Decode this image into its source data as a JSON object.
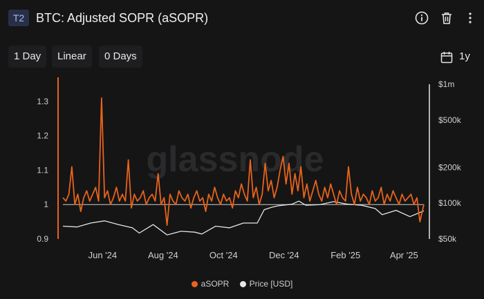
{
  "header": {
    "badge": "T2",
    "title": "BTC: Adjusted SOPR (aSOPR)"
  },
  "toolbar": {
    "resolution": "1 Day",
    "scale": "Linear",
    "moving_average": "0 Days",
    "range": "1y"
  },
  "watermark": "glassnode",
  "colors": {
    "asopr": "#e8641b",
    "price": "#e6e6e6",
    "background": "#151516",
    "axis_text": "#d0d0d0"
  },
  "icons": [
    "info-icon",
    "trash-icon",
    "more-vertical-icon",
    "calendar-icon"
  ],
  "chart_data": {
    "type": "line",
    "x_ticks": [
      "Jun '24",
      "Aug '24",
      "Oct '24",
      "Dec '24",
      "Feb '25",
      "Apr '25"
    ],
    "x_tick_dates": [
      "2024-06-01",
      "2024-08-01",
      "2024-10-01",
      "2024-12-01",
      "2025-02-01",
      "2025-04-01"
    ],
    "x_range": [
      "2024-04-22",
      "2025-04-21"
    ],
    "y_left": {
      "ticks": [
        "0.9",
        "1",
        "1.1",
        "1.2",
        "1.3"
      ],
      "tick_values": [
        0.9,
        1.0,
        1.1,
        1.2,
        1.3
      ],
      "range": [
        0.9,
        1.35
      ]
    },
    "y_right": {
      "scale": "log",
      "ticks": [
        "$50k",
        "$100k",
        "$200k",
        "$500k",
        "$1m"
      ],
      "tick_values": [
        50000,
        100000,
        200000,
        500000,
        1000000
      ],
      "range": [
        50000,
        1000000
      ]
    },
    "reference_line": 1.0,
    "legend_position": "bottom-center",
    "grid": false,
    "series": [
      {
        "name": "aSOPR",
        "axis": "left",
        "dates": [
          "2024-04-22",
          "2024-04-25",
          "2024-04-28",
          "2024-05-01",
          "2024-05-04",
          "2024-05-07",
          "2024-05-10",
          "2024-05-13",
          "2024-05-16",
          "2024-05-19",
          "2024-05-22",
          "2024-05-25",
          "2024-05-28",
          "2024-05-31",
          "2024-06-03",
          "2024-06-06",
          "2024-06-09",
          "2024-06-12",
          "2024-06-15",
          "2024-06-18",
          "2024-06-21",
          "2024-06-24",
          "2024-06-27",
          "2024-06-30",
          "2024-07-03",
          "2024-07-06",
          "2024-07-09",
          "2024-07-12",
          "2024-07-15",
          "2024-07-18",
          "2024-07-21",
          "2024-07-24",
          "2024-07-27",
          "2024-07-30",
          "2024-08-02",
          "2024-08-05",
          "2024-08-08",
          "2024-08-11",
          "2024-08-14",
          "2024-08-17",
          "2024-08-20",
          "2024-08-23",
          "2024-08-26",
          "2024-08-29",
          "2024-09-01",
          "2024-09-04",
          "2024-09-07",
          "2024-09-10",
          "2024-09-13",
          "2024-09-16",
          "2024-09-19",
          "2024-09-22",
          "2024-09-25",
          "2024-09-28",
          "2024-10-01",
          "2024-10-04",
          "2024-10-07",
          "2024-10-10",
          "2024-10-13",
          "2024-10-16",
          "2024-10-19",
          "2024-10-22",
          "2024-10-25",
          "2024-10-28",
          "2024-10-31",
          "2024-11-03",
          "2024-11-06",
          "2024-11-09",
          "2024-11-12",
          "2024-11-15",
          "2024-11-18",
          "2024-11-21",
          "2024-11-24",
          "2024-11-27",
          "2024-11-30",
          "2024-12-03",
          "2024-12-06",
          "2024-12-09",
          "2024-12-12",
          "2024-12-15",
          "2024-12-18",
          "2024-12-21",
          "2024-12-24",
          "2024-12-27",
          "2024-12-30",
          "2025-01-02",
          "2025-01-05",
          "2025-01-08",
          "2025-01-11",
          "2025-01-14",
          "2025-01-17",
          "2025-01-20",
          "2025-01-23",
          "2025-01-26",
          "2025-01-29",
          "2025-02-01",
          "2025-02-04",
          "2025-02-07",
          "2025-02-10",
          "2025-02-13",
          "2025-02-16",
          "2025-02-19",
          "2025-02-22",
          "2025-02-25",
          "2025-02-28",
          "2025-03-03",
          "2025-03-06",
          "2025-03-09",
          "2025-03-12",
          "2025-03-15",
          "2025-03-18",
          "2025-03-21",
          "2025-03-24",
          "2025-03-27",
          "2025-03-30",
          "2025-04-02",
          "2025-04-05",
          "2025-04-08",
          "2025-04-11",
          "2025-04-14",
          "2025-04-17",
          "2025-04-21"
        ],
        "values": [
          1.02,
          1.01,
          1.03,
          1.11,
          1.0,
          1.03,
          0.98,
          1.02,
          1.04,
          1.01,
          1.03,
          1.05,
          1.01,
          1.31,
          1.02,
          1.04,
          1.0,
          1.02,
          1.05,
          1.01,
          1.03,
          1.01,
          1.13,
          0.99,
          1.03,
          1.01,
          1.02,
          1.04,
          1.0,
          1.02,
          1.03,
          1.01,
          1.09,
          1.0,
          1.02,
          0.94,
          1.03,
          1.01,
          1.0,
          1.04,
          1.02,
          1.01,
          1.03,
          0.99,
          1.02,
          1.04,
          1.01,
          1.02,
          0.98,
          1.03,
          1.01,
          1.05,
          1.02,
          1.0,
          1.03,
          1.01,
          1.02,
          0.99,
          1.04,
          1.02,
          1.06,
          1.03,
          1.01,
          1.13,
          1.02,
          1.05,
          1.0,
          1.03,
          1.12,
          1.04,
          1.07,
          1.02,
          1.05,
          1.1,
          1.14,
          1.06,
          1.12,
          1.03,
          1.09,
          1.04,
          1.11,
          1.02,
          1.06,
          1.01,
          1.04,
          1.07,
          1.03,
          1.01,
          1.05,
          1.02,
          1.06,
          1.03,
          1.0,
          1.04,
          1.02,
          1.01,
          1.11,
          1.03,
          1.0,
          1.05,
          1.01,
          1.03,
          1.02,
          1.0,
          1.04,
          1.01,
          1.02,
          1.05,
          1.0,
          1.03,
          1.01,
          1.04,
          1.02,
          1.0,
          1.03,
          1.01,
          1.02,
          1.03,
          1.0,
          1.02,
          0.95,
          1.0
        ],
        "color": "#e8641b"
      },
      {
        "name": "Price [USD]",
        "axis": "right",
        "dates": [
          "2024-04-22",
          "2024-05-06",
          "2024-05-20",
          "2024-06-03",
          "2024-06-17",
          "2024-07-01",
          "2024-07-08",
          "2024-07-22",
          "2024-08-05",
          "2024-08-19",
          "2024-09-02",
          "2024-09-09",
          "2024-09-23",
          "2024-10-07",
          "2024-10-21",
          "2024-11-04",
          "2024-11-11",
          "2024-11-18",
          "2024-11-25",
          "2024-12-09",
          "2024-12-16",
          "2024-12-23",
          "2025-01-06",
          "2025-01-20",
          "2025-02-03",
          "2025-02-17",
          "2025-03-03",
          "2025-03-10",
          "2025-03-24",
          "2025-04-07",
          "2025-04-21"
        ],
        "values": [
          64000,
          63000,
          68000,
          71000,
          66000,
          62000,
          56000,
          66000,
          54000,
          58000,
          57000,
          55000,
          64000,
          62000,
          68000,
          68000,
          88000,
          92000,
          95000,
          98000,
          104000,
          96000,
          97000,
          103000,
          98000,
          96000,
          90000,
          80000,
          87000,
          77000,
          86000
        ],
        "color": "#e6e6e6"
      }
    ]
  }
}
